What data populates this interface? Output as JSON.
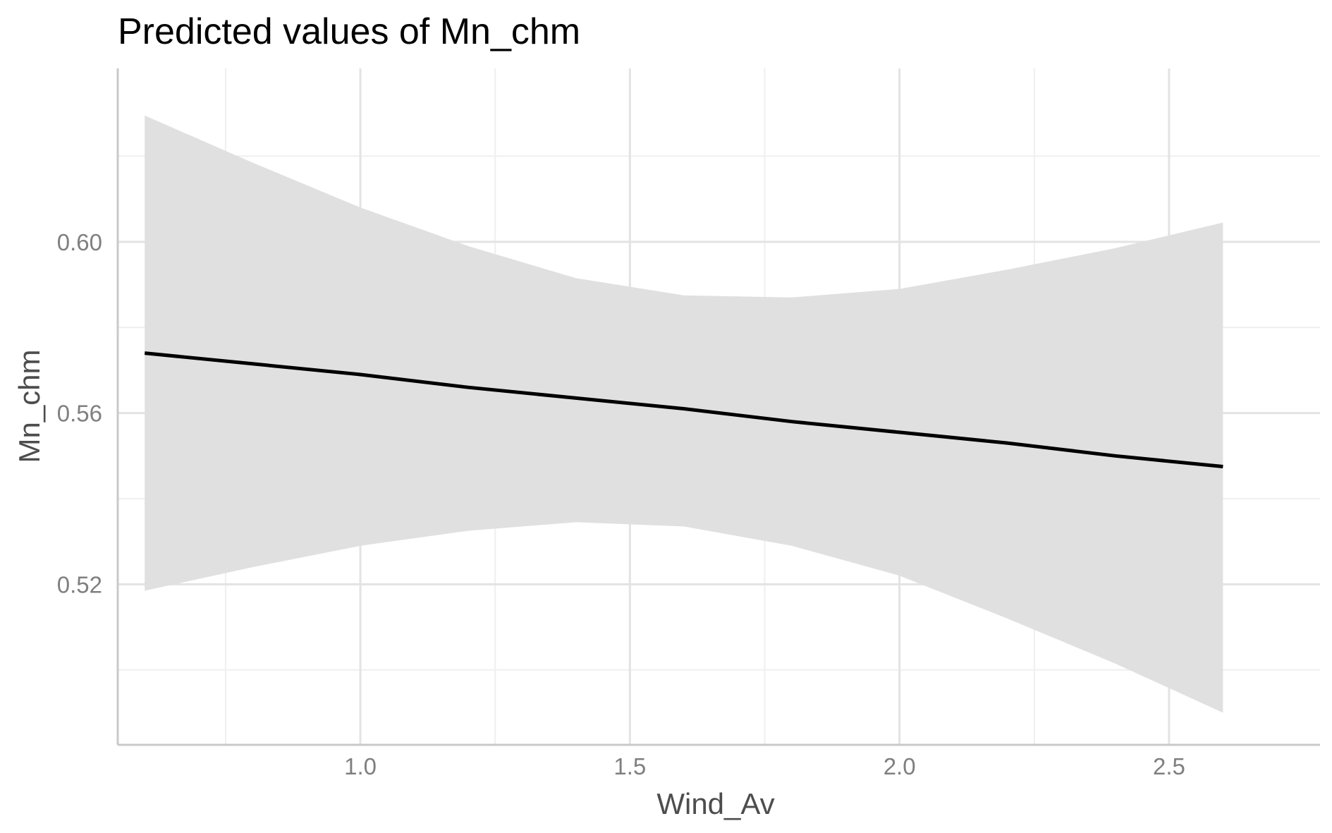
{
  "chart_data": {
    "type": "line",
    "title": "Predicted values of Mn_chm",
    "xlabel": "Wind_Av",
    "ylabel": "Mn_chm",
    "xlim": [
      0.55,
      2.78
    ],
    "ylim": [
      0.4825,
      0.6405
    ],
    "x_ticks": [
      1.0,
      1.5,
      2.0,
      2.5
    ],
    "x_tick_labels": [
      "1.0",
      "1.5",
      "2.0",
      "2.5"
    ],
    "x_minor_ticks": [
      0.75,
      1.25,
      1.75,
      2.25
    ],
    "y_ticks": [
      0.52,
      0.56,
      0.6
    ],
    "y_tick_labels": [
      "0.52",
      "0.56",
      "0.60"
    ],
    "y_minor_ticks": [
      0.5,
      0.54,
      0.58,
      0.62
    ],
    "grid": true,
    "legend": "none",
    "line_color": "#000000",
    "ribbon_color": "#e0e0e0",
    "series": [
      {
        "x": [
          0.6,
          0.8,
          1.0,
          1.2,
          1.4,
          1.6,
          1.8,
          2.0,
          2.2,
          2.4,
          2.6
        ],
        "y": [
          0.574,
          0.5715,
          0.569,
          0.566,
          0.5635,
          0.561,
          0.558,
          0.5555,
          0.553,
          0.55,
          0.5475
        ],
        "lower": [
          0.5185,
          0.524,
          0.529,
          0.5325,
          0.5345,
          0.5335,
          0.529,
          0.522,
          0.512,
          0.5015,
          0.49
        ],
        "upper": [
          0.6295,
          0.6185,
          0.608,
          0.599,
          0.5915,
          0.5875,
          0.587,
          0.589,
          0.5935,
          0.5985,
          0.6045
        ]
      }
    ]
  }
}
